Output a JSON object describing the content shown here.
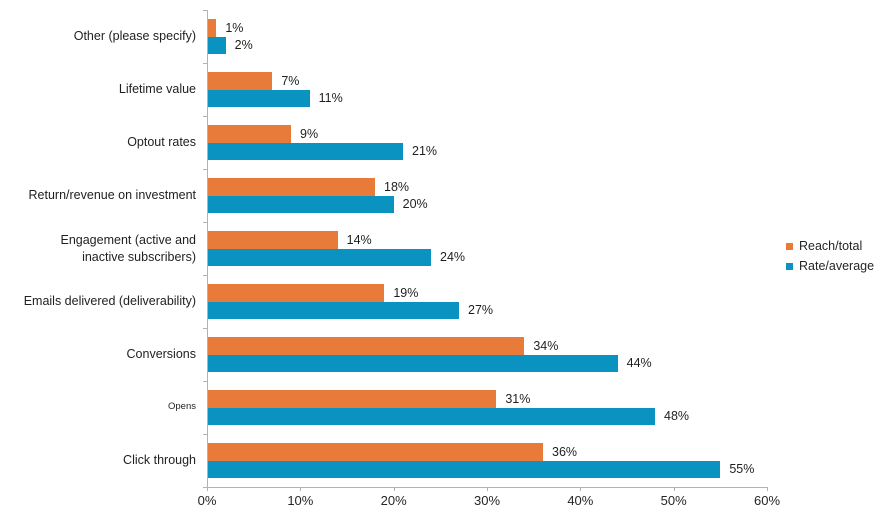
{
  "page": {
    "background_color": "#ffffff",
    "title": ""
  },
  "chart_data": {
    "type": "bar",
    "orientation": "horizontal",
    "title": "",
    "xlabel": "",
    "ylabel": "",
    "xlim": [
      0,
      60
    ],
    "x_tick_step": 10,
    "x_tick_labels": [
      "0%",
      "10%",
      "20%",
      "30%",
      "40%",
      "50%",
      "60%"
    ],
    "grid": false,
    "legend_position": "right",
    "categories": [
      "Other (please specify)",
      "Lifetime value",
      "Optout rates",
      "Return/revenue on investment",
      "Engagement (active and\ninactive subscribers)",
      "Emails delivered (deliverability)",
      "Conversions",
      "Opens",
      "Click through"
    ],
    "small_font_category_indices": [
      7
    ],
    "series": [
      {
        "name": "Reach/total",
        "color": "#E87B39",
        "values": [
          1,
          7,
          9,
          18,
          14,
          19,
          34,
          31,
          36
        ],
        "value_labels": [
          "1%",
          "7%",
          "9%",
          "18%",
          "14%",
          "19%",
          "34%",
          "31%",
          "36%"
        ]
      },
      {
        "name": "Rate/average",
        "color": "#0A92C1",
        "values": [
          2,
          11,
          21,
          20,
          24,
          27,
          44,
          48,
          55
        ],
        "value_labels": [
          "2%",
          "11%",
          "21%",
          "20%",
          "24%",
          "27%",
          "44%",
          "48%",
          "55%"
        ]
      }
    ],
    "axis_color": "#b3b3b3",
    "text_color": "#1f1f1f"
  }
}
